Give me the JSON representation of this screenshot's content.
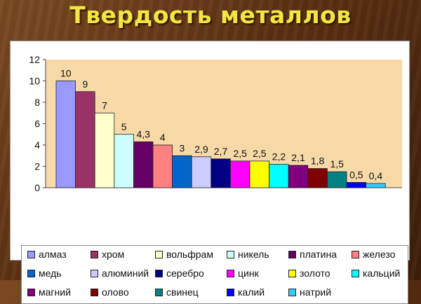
{
  "title": "Твердость металлов",
  "chart_data": {
    "type": "bar",
    "title": "Твердость металлов",
    "xlabel": "",
    "ylabel": "",
    "ylim": [
      0,
      12
    ],
    "yticks": [
      "0",
      "2",
      "4",
      "6",
      "8",
      "10",
      "12"
    ],
    "grid": false,
    "legend_position": "bottom",
    "series": [
      {
        "name": "алмаз",
        "value": 10,
        "label": "10",
        "color": "#9999ff"
      },
      {
        "name": "хром",
        "value": 9,
        "label": "9",
        "color": "#993366"
      },
      {
        "name": "вольфрам",
        "value": 7,
        "label": "7",
        "color": "#ffffcc"
      },
      {
        "name": "никель",
        "value": 5,
        "label": "5",
        "color": "#ccffff"
      },
      {
        "name": "платина",
        "value": 4.3,
        "label": "4,3",
        "color": "#660066"
      },
      {
        "name": "железо",
        "value": 4,
        "label": "4",
        "color": "#ff8080"
      },
      {
        "name": "медь",
        "value": 3,
        "label": "3",
        "color": "#0066cc"
      },
      {
        "name": "алюминий",
        "value": 2.9,
        "label": "2,9",
        "color": "#ccccff"
      },
      {
        "name": "серебро",
        "value": 2.7,
        "label": "2,7",
        "color": "#000080"
      },
      {
        "name": "цинк",
        "value": 2.5,
        "label": "2,5",
        "color": "#ff00ff"
      },
      {
        "name": "золото",
        "value": 2.5,
        "label": "2,5",
        "color": "#ffff00"
      },
      {
        "name": "кальций",
        "value": 2.2,
        "label": "2,2",
        "color": "#00ffff"
      },
      {
        "name": "магний",
        "value": 2.1,
        "label": "2,1",
        "color": "#800080"
      },
      {
        "name": "олово",
        "value": 1.8,
        "label": "1,8",
        "color": "#800000"
      },
      {
        "name": "свинец",
        "value": 1.5,
        "label": "1,5",
        "color": "#008080"
      },
      {
        "name": "калий",
        "value": 0.5,
        "label": "0,5",
        "color": "#0000ff"
      },
      {
        "name": "натрий",
        "value": 0.4,
        "label": "0,4",
        "color": "#33ccff"
      }
    ]
  }
}
